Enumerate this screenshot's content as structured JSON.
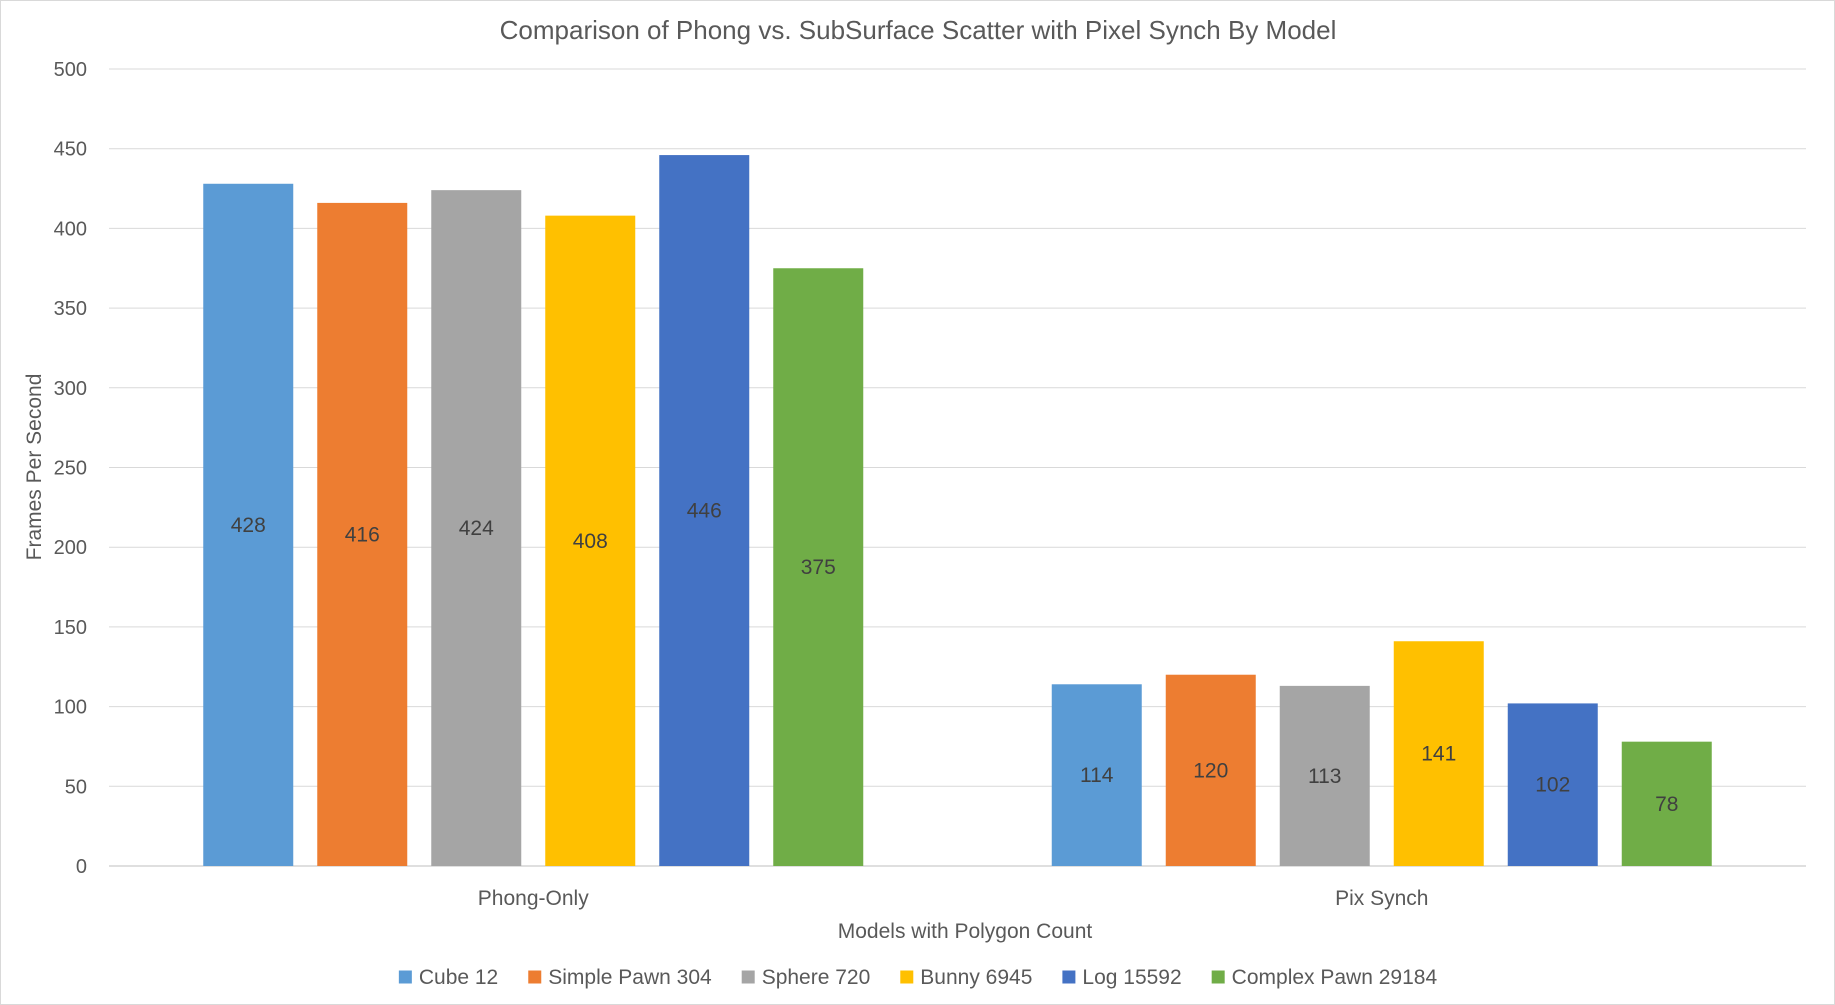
{
  "chart_data": {
    "type": "bar",
    "title": "Comparison of Phong vs. SubSurface Scatter with Pixel Synch By Model",
    "xlabel": "Models with Polygon Count",
    "ylabel": "Frames Per Second",
    "ylim": [
      0,
      500
    ],
    "yticks": [
      0,
      50,
      100,
      150,
      200,
      250,
      300,
      350,
      400,
      450,
      500
    ],
    "categories": [
      "Phong-Only",
      "Pix Synch"
    ],
    "grid": true,
    "legend_position": "bottom",
    "series": [
      {
        "name": "Cube 12",
        "color": "#5b9bd5",
        "values": [
          428,
          114
        ]
      },
      {
        "name": "Simple Pawn 304",
        "color": "#ed7d31",
        "values": [
          416,
          120
        ]
      },
      {
        "name": "Sphere 720",
        "color": "#a5a5a5",
        "values": [
          424,
          113
        ]
      },
      {
        "name": "Bunny 6945",
        "color": "#ffc000",
        "values": [
          408,
          141
        ]
      },
      {
        "name": "Log 15592",
        "color": "#4472c4",
        "values": [
          446,
          102
        ]
      },
      {
        "name": "Complex Pawn 29184",
        "color": "#70ad47",
        "values": [
          375,
          78
        ]
      }
    ]
  }
}
